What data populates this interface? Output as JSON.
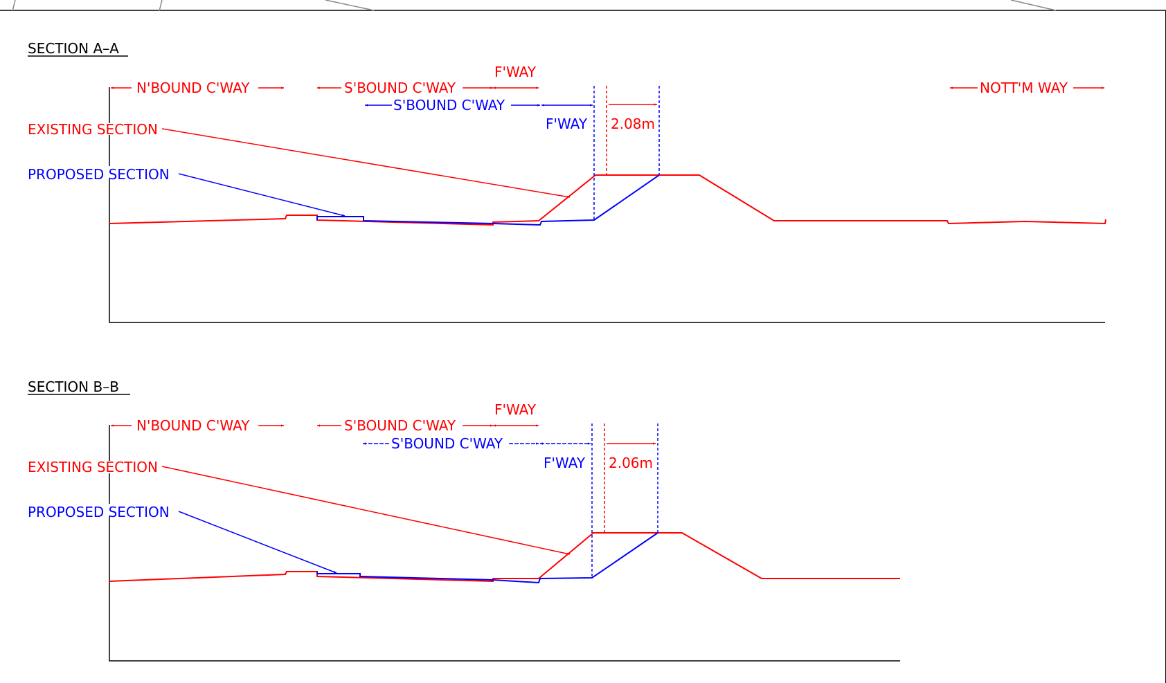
{
  "colors": {
    "existing": "#ff0000",
    "proposed": "#0000ff",
    "linework": "#000000",
    "background": "#ffffff"
  },
  "sections": [
    {
      "title": "SECTION A–A",
      "labels": {
        "nbound_red": "N'BOUND C'WAY",
        "sbound_red": "S'BOUND C'WAY",
        "fway_red": "F'WAY",
        "sbound_blue": "S'BOUND C'WAY",
        "fway_blue": "F'WAY",
        "offset": "2.08m",
        "nottm_way": "NOTT'M WAY",
        "existing_section": "EXISTING SECTION",
        "proposed_section": "PROPOSED SECTION"
      }
    },
    {
      "title": "SECTION B–B",
      "labels": {
        "nbound_red": "N'BOUND C'WAY",
        "sbound_red": "S'BOUND C'WAY",
        "fway_red": "F'WAY",
        "sbound_blue": "S'BOUND C'WAY",
        "fway_blue": "F'WAY",
        "offset": "2.06m",
        "existing_section": "EXISTING SECTION",
        "proposed_section": "PROPOSED SECTION"
      }
    }
  ]
}
